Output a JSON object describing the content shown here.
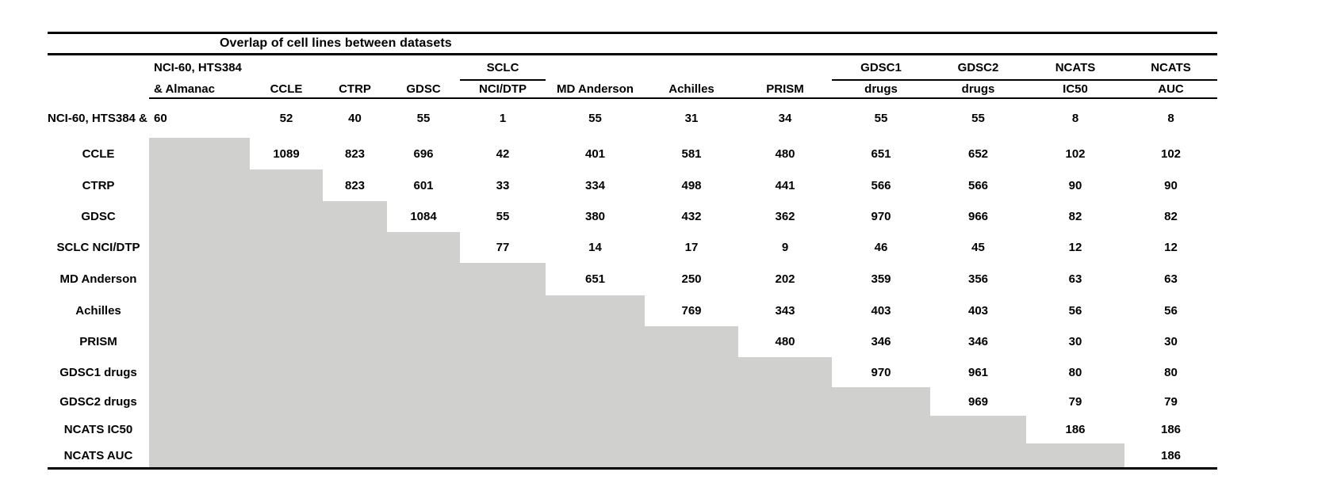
{
  "title": "Overlap of cell lines between datasets",
  "colors": {
    "shade": "#d0d0ce",
    "line": "#000000",
    "background": "#ffffff",
    "text": "#000000"
  },
  "table": {
    "header": {
      "row1": [
        "",
        "NCI-60, HTS384",
        "",
        "",
        "",
        "SCLC",
        "",
        "",
        "",
        "GDSC1",
        "GDSC2",
        "NCATS",
        "NCATS"
      ],
      "row2": [
        "",
        "& Almanac",
        "CCLE",
        "CTRP",
        "GDSC",
        "NCI/DTP",
        "MD Anderson",
        "Achilles",
        "PRISM",
        "drugs",
        "drugs",
        "IC50",
        "AUC"
      ],
      "row1_underlined_columns": [
        5,
        9,
        10,
        11,
        12
      ]
    },
    "rows": [
      {
        "label": "NCI-60, HTS384 & Almanac",
        "values": [
          60,
          52,
          40,
          55,
          1,
          55,
          31,
          34,
          55,
          55,
          8,
          8
        ]
      },
      {
        "label": "CCLE",
        "values": [
          1089,
          823,
          696,
          42,
          401,
          581,
          480,
          651,
          652,
          102,
          102
        ]
      },
      {
        "label": "CTRP",
        "values": [
          823,
          601,
          33,
          334,
          498,
          441,
          566,
          566,
          90,
          90
        ]
      },
      {
        "label": "GDSC",
        "values": [
          1084,
          55,
          380,
          432,
          362,
          970,
          966,
          82,
          82
        ]
      },
      {
        "label": "SCLC NCI/DTP",
        "values": [
          77,
          14,
          17,
          9,
          46,
          45,
          12,
          12
        ]
      },
      {
        "label": "MD Anderson",
        "values": [
          651,
          250,
          202,
          359,
          356,
          63,
          63
        ]
      },
      {
        "label": "Achilles",
        "values": [
          769,
          343,
          403,
          403,
          56,
          56
        ]
      },
      {
        "label": "PRISM",
        "values": [
          480,
          346,
          346,
          30,
          30
        ]
      },
      {
        "label": "GDSC1 drugs",
        "values": [
          970,
          961,
          80,
          80
        ]
      },
      {
        "label": "GDSC2 drugs",
        "values": [
          969,
          79,
          79
        ]
      },
      {
        "label": "NCATS IC50",
        "values": [
          186,
          186
        ]
      },
      {
        "label": "NCATS AUC",
        "values": [
          186
        ]
      }
    ]
  }
}
